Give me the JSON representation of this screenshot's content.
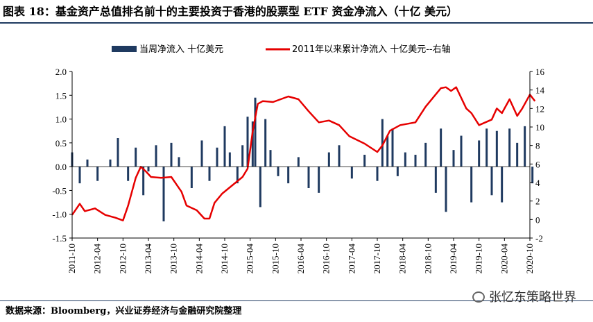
{
  "title": "图表 18：基金资产总值排名前十的主要投资于香港的股票型 ETF 资金净流入（十亿  美元）",
  "source": "数据来源：Bloomberg，兴业证券经济与金融研究院整理",
  "watermark": "张忆东策略世界",
  "colors": {
    "bars": "#1f3a60",
    "line": "#e60000"
  },
  "chart_data": {
    "type": "bar+line",
    "x_ticks": [
      "2011-10",
      "2012-04",
      "2012-10",
      "2013-04",
      "2013-10",
      "2014-04",
      "2014-10",
      "2015-04",
      "2015-10",
      "2016-04",
      "2016-10",
      "2017-04",
      "2017-10",
      "2018-04",
      "2018-10",
      "2019-04",
      "2019-10",
      "2020-04",
      "2020-10"
    ],
    "y_left": {
      "ticks": [
        "2.0",
        "1.5",
        "1.0",
        "0.5",
        "0.0",
        "-0.5",
        "-1.0",
        "-1.5"
      ],
      "range": [
        -1.5,
        2.0
      ]
    },
    "y_right": {
      "ticks": [
        "16",
        "14",
        "12",
        "10",
        "8",
        "6",
        "4",
        "2",
        "0",
        "-2"
      ],
      "range": [
        -2,
        16
      ]
    },
    "legend": {
      "position": "top",
      "items": [
        {
          "name": "当周净流入  十亿美元",
          "kind": "bar"
        },
        {
          "name": "2011年以来累计净流入  十亿美元--右轴",
          "kind": "line"
        }
      ]
    },
    "series": [
      {
        "name": "当周净流入  十亿美元",
        "kind": "bar",
        "axis": "left",
        "x": [
          2011.75,
          2011.9,
          2012.05,
          2012.25,
          2012.5,
          2012.65,
          2012.85,
          2013.0,
          2013.15,
          2013.25,
          2013.4,
          2013.55,
          2013.7,
          2013.85,
          2014.1,
          2014.3,
          2014.45,
          2014.6,
          2014.75,
          2014.85,
          2015.0,
          2015.1,
          2015.2,
          2015.3,
          2015.35,
          2015.45,
          2015.55,
          2015.65,
          2015.8,
          2016.0,
          2016.2,
          2016.4,
          2016.6,
          2016.8,
          2017.0,
          2017.25,
          2017.5,
          2017.75,
          2017.85,
          2017.95,
          2018.05,
          2018.15,
          2018.3,
          2018.5,
          2018.7,
          2018.9,
          2019.0,
          2019.1,
          2019.25,
          2019.4,
          2019.6,
          2019.75,
          2019.9,
          2020.0,
          2020.1,
          2020.2,
          2020.35,
          2020.5,
          2020.65,
          2020.8
        ],
        "values": [
          0.3,
          -0.35,
          0.15,
          -0.3,
          0.15,
          0.6,
          -0.3,
          0.4,
          -0.6,
          -0.1,
          0.45,
          -1.15,
          0.5,
          0.2,
          -0.45,
          0.55,
          -0.3,
          0.4,
          0.85,
          0.3,
          -0.35,
          0.45,
          1.05,
          0.95,
          1.45,
          -0.85,
          1.0,
          0.35,
          -0.2,
          -0.35,
          0.2,
          -0.45,
          -0.55,
          0.3,
          0.45,
          -0.25,
          0.25,
          -0.3,
          1.0,
          0.65,
          0.8,
          -0.2,
          0.3,
          0.25,
          0.5,
          -0.55,
          0.8,
          -0.95,
          0.35,
          0.65,
          -0.75,
          0.55,
          0.8,
          -0.6,
          0.75,
          -0.75,
          0.8,
          0.5,
          0.85,
          -0.35
        ]
      },
      {
        "name": "2011年以来累计净流入  十亿美元--右轴",
        "kind": "line",
        "axis": "right",
        "x": [
          2011.75,
          2011.9,
          2012.0,
          2012.2,
          2012.4,
          2012.6,
          2012.75,
          2012.85,
          2013.0,
          2013.1,
          2013.2,
          2013.3,
          2013.5,
          2013.7,
          2013.9,
          2014.0,
          2014.2,
          2014.35,
          2014.45,
          2014.55,
          2014.7,
          2014.9,
          2015.1,
          2015.2,
          2015.3,
          2015.4,
          2015.5,
          2015.7,
          2016.0,
          2016.2,
          2016.4,
          2016.6,
          2016.8,
          2017.0,
          2017.2,
          2017.5,
          2017.75,
          2017.85,
          2018.0,
          2018.2,
          2018.5,
          2018.7,
          2019.0,
          2019.1,
          2019.2,
          2019.3,
          2019.5,
          2019.6,
          2019.75,
          2020.0,
          2020.1,
          2020.2,
          2020.35,
          2020.5,
          2020.6,
          2020.75,
          2020.85
        ],
        "values": [
          0.5,
          1.7,
          0.9,
          1.2,
          0.5,
          0.2,
          -0.1,
          1.5,
          4.5,
          5.7,
          5.2,
          4.6,
          4.5,
          4.6,
          3.0,
          1.5,
          1.0,
          0.1,
          0.1,
          1.8,
          2.8,
          3.7,
          4.6,
          5.5,
          9.5,
          12.5,
          12.8,
          12.7,
          13.3,
          13.0,
          11.7,
          10.5,
          10.7,
          10.2,
          9.0,
          8.2,
          7.3,
          8.0,
          9.6,
          10.2,
          10.5,
          12.2,
          14.2,
          14.3,
          13.9,
          14.3,
          12.0,
          11.5,
          10.2,
          10.8,
          12.0,
          11.5,
          13.0,
          11.2,
          12.0,
          13.5,
          12.8
        ]
      }
    ]
  }
}
